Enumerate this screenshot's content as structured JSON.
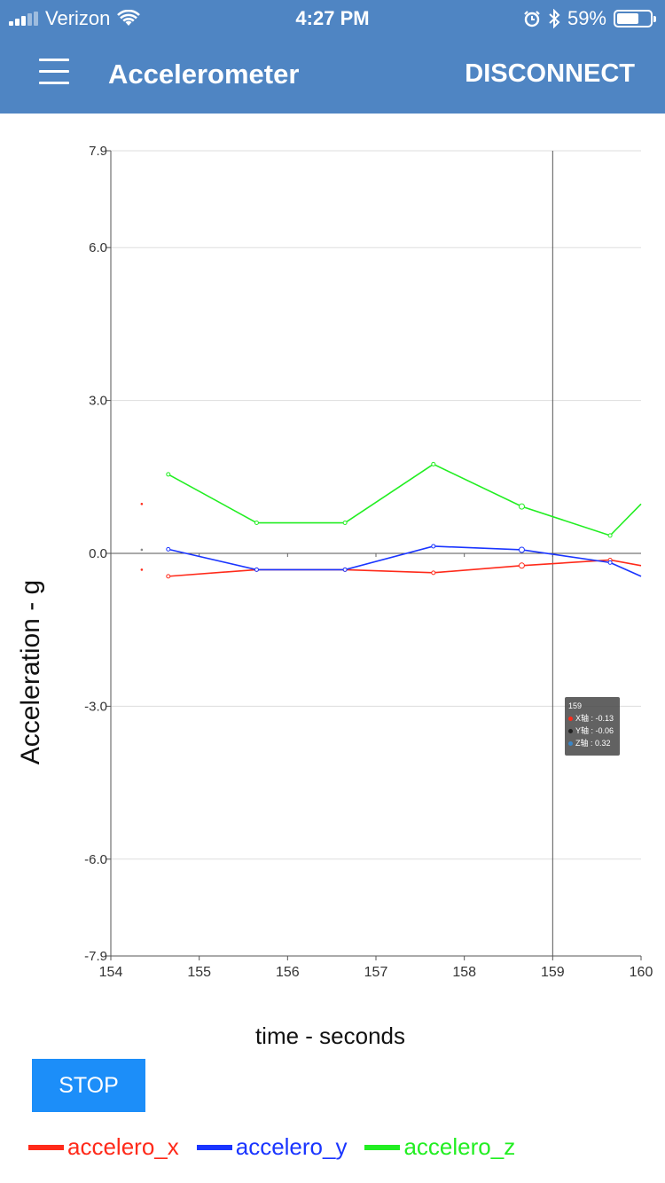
{
  "status_bar": {
    "carrier": "Verizon",
    "time": "4:27 PM",
    "battery": "59%",
    "battery_level": 0.59,
    "icons": [
      "signal-icon",
      "wifi-icon",
      "alarm-icon",
      "bluetooth-icon",
      "battery-icon"
    ]
  },
  "navbar": {
    "title": "Accelerometer",
    "disconnect_label": "DISCONNECT",
    "menu_icon": "hamburger-menu-icon",
    "background": "#4f85c3"
  },
  "chart_data": {
    "type": "line",
    "xlabel": "time - seconds",
    "ylabel": "Acceleration - g",
    "xlim": [
      154,
      160
    ],
    "ylim": [
      -7.9,
      7.9
    ],
    "x_ticks": [
      "154",
      "155",
      "156",
      "157",
      "158",
      "159",
      "160"
    ],
    "y_ticks": [
      "7.9",
      "6.0",
      "3.0",
      "0.0",
      "-3.0",
      "-6.0",
      "-7.9"
    ],
    "grid": true,
    "crosshair_x": 159,
    "series": [
      {
        "name": "accelero_x",
        "color": "#ff2a1a",
        "x": [
          154.65,
          155.65,
          156.65,
          157.65,
          158.65,
          159.65,
          160
        ],
        "y": [
          -0.45,
          -0.32,
          -0.32,
          -0.38,
          -0.24,
          -0.13,
          -0.24
        ]
      },
      {
        "name": "accelero_y",
        "color": "#1a35ff",
        "x": [
          154.65,
          155.65,
          156.65,
          157.65,
          158.65,
          159.65,
          160
        ],
        "y": [
          0.08,
          -0.32,
          -0.32,
          0.14,
          0.07,
          -0.18,
          -0.45
        ]
      },
      {
        "name": "accelero_z",
        "color": "#22ee22",
        "x": [
          154.65,
          155.65,
          156.65,
          157.65,
          158.65,
          159.65,
          160
        ],
        "y": [
          1.55,
          0.6,
          0.6,
          1.75,
          0.92,
          0.35,
          0.97
        ]
      }
    ],
    "stray_points": [
      {
        "x": 154.35,
        "y": 0.97,
        "color": "#ff2a1a"
      },
      {
        "x": 154.35,
        "y": 0.07,
        "color": "#888888"
      },
      {
        "x": 154.35,
        "y": -0.32,
        "color": "#ff2a1a"
      }
    ],
    "tooltip": {
      "title": "159",
      "rows": [
        {
          "label": "X轴 : -0.13",
          "color": "#ff2a1a"
        },
        {
          "label": "Y轴 : -0.06",
          "color": "#222222"
        },
        {
          "label": "Z轴 : 0.32",
          "color": "#3a86c8"
        }
      ]
    }
  },
  "controls": {
    "stop_label": "STOP",
    "stop_color": "#1c8ef9"
  },
  "legend": [
    {
      "label": "accelero_x",
      "color": "#ff2a1a"
    },
    {
      "label": "accelero_y",
      "color": "#1a35ff"
    },
    {
      "label": "accelero_z",
      "color": "#22ee22"
    }
  ]
}
